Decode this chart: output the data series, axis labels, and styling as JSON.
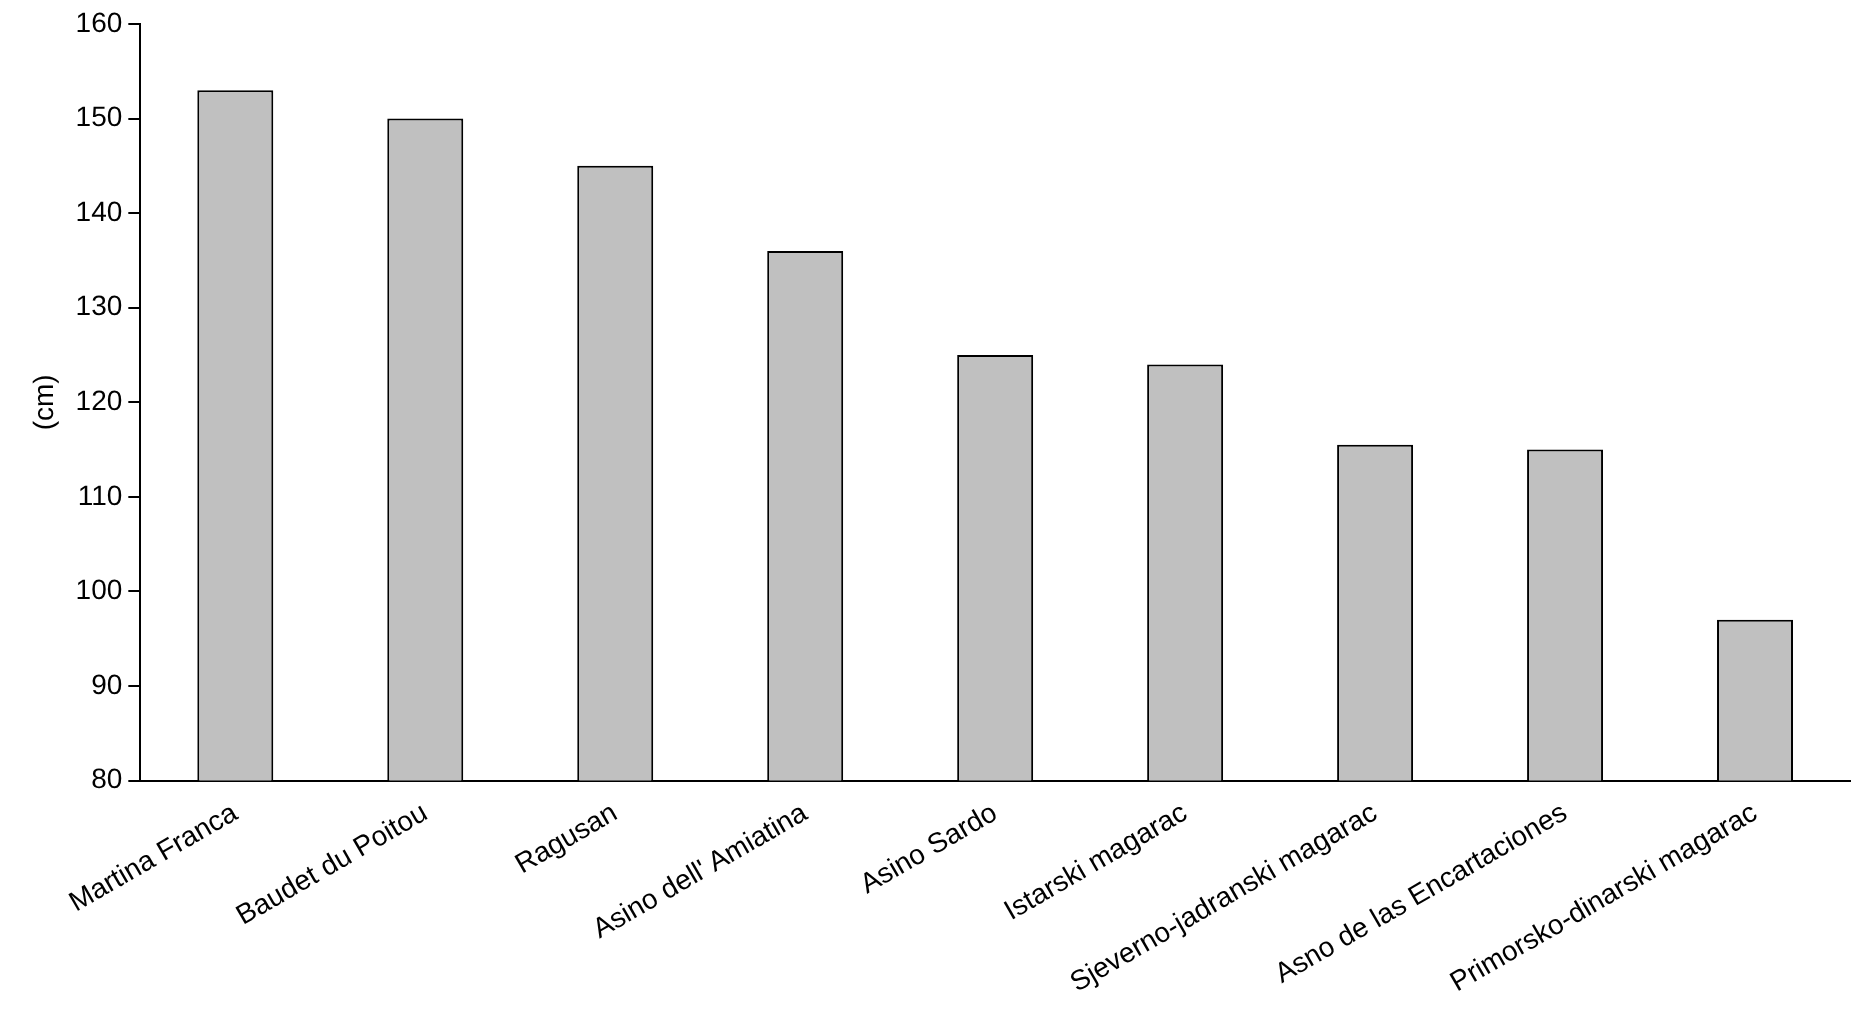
{
  "chart_data": {
    "type": "bar",
    "ylabel": "(cm)",
    "categories": [
      "Martina Franca",
      "Baudet du Poitou",
      "Ragusan",
      "Asino dell' Amiatina",
      "Asino Sardo",
      "Istarski magarac",
      "Sjeverno-jadranski magarac",
      "Asno de las Encartaciones",
      "Primorsko-dinarski magarac"
    ],
    "values": [
      153,
      150,
      145,
      136,
      125,
      124,
      115.5,
      115,
      97
    ],
    "color": "#c0c0c0",
    "ylim": [
      80,
      160
    ],
    "yticks": [
      80,
      90,
      100,
      110,
      120,
      130,
      140,
      150,
      160
    ],
    "grid": false,
    "legend": false
  }
}
